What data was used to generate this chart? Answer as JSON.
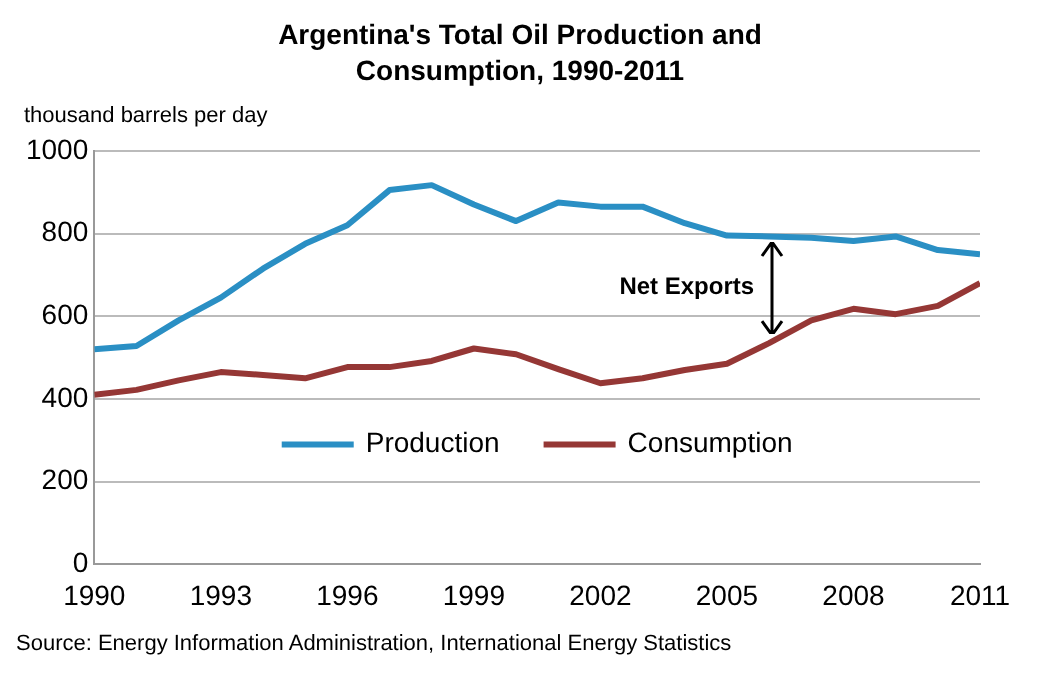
{
  "chart_data": {
    "type": "line",
    "title": "Argentina's Total Oil Production and Consumption, 1990-2011",
    "ylabel": "thousand barrels per day",
    "x": [
      1990,
      1991,
      1992,
      1993,
      1994,
      1995,
      1996,
      1997,
      1998,
      1999,
      2000,
      2001,
      2002,
      2003,
      2004,
      2005,
      2006,
      2007,
      2008,
      2009,
      2010,
      2011
    ],
    "series": [
      {
        "name": "Production",
        "color": "#2a8fc4",
        "values": [
          520,
          528,
          590,
          645,
          715,
          775,
          820,
          905,
          917,
          870,
          830,
          875,
          865,
          865,
          825,
          795,
          793,
          790,
          782,
          793,
          760,
          750
        ]
      },
      {
        "name": "Consumption",
        "color": "#953735",
        "values": [
          410,
          422,
          445,
          465,
          458,
          450,
          477,
          477,
          492,
          522,
          508,
          472,
          438,
          450,
          470,
          485,
          535,
          590,
          618,
          605,
          625,
          680
        ]
      }
    ],
    "xlim": [
      1990,
      2011
    ],
    "xticks": [
      1990,
      1993,
      1996,
      1999,
      2002,
      2005,
      2008,
      2011
    ],
    "ylim": [
      0,
      1000
    ],
    "yticks": [
      0,
      200,
      400,
      600,
      800,
      1000
    ],
    "grid": "y",
    "legend": "bottom",
    "marker": "none",
    "line_style": "solid",
    "annotations": [
      "Net Exports",
      "Source: Energy Information Administration, International Energy Statistics"
    ]
  }
}
